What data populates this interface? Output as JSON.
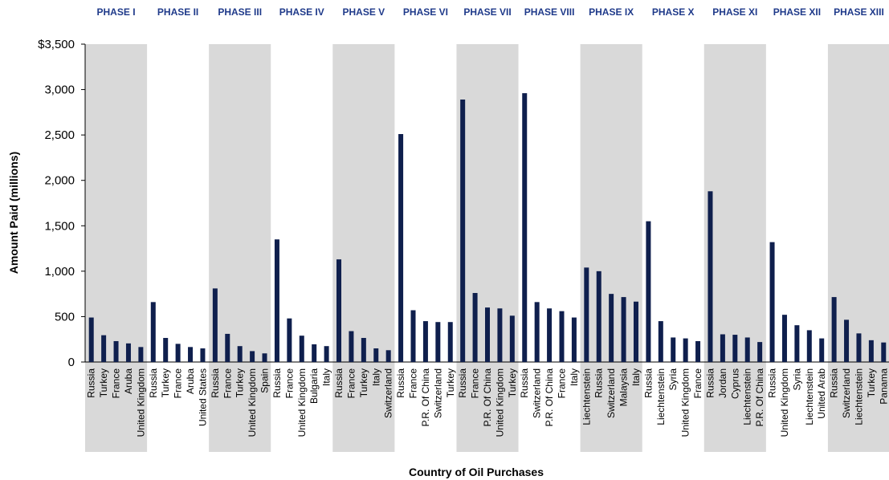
{
  "chart_data": {
    "type": "bar",
    "ylabel": "Amount Paid (millions)",
    "xlabel": "Country of Oil Purchases",
    "ylim": [
      0,
      3500
    ],
    "yticks": [
      "0",
      "500",
      "1,000",
      "1,500",
      "2,000",
      "2,500",
      "3,000",
      "$3,500"
    ],
    "grid": false,
    "colors": {
      "bar": "#0f1f4d",
      "band": "#d9d9d9",
      "phase_label": "#1f3a8a"
    },
    "phases": [
      {
        "name": "PHASE I",
        "shaded": true,
        "bars": [
          {
            "country": "Russia",
            "value": 490
          },
          {
            "country": "Turkey",
            "value": 295
          },
          {
            "country": "France",
            "value": 230
          },
          {
            "country": "Aruba",
            "value": 205
          },
          {
            "country": "United Kingdom",
            "value": 165
          }
        ]
      },
      {
        "name": "PHASE II",
        "shaded": false,
        "bars": [
          {
            "country": "Russia",
            "value": 660
          },
          {
            "country": "Turkey",
            "value": 265
          },
          {
            "country": "France",
            "value": 200
          },
          {
            "country": "Aruba",
            "value": 165
          },
          {
            "country": "United States",
            "value": 150
          }
        ]
      },
      {
        "name": "PHASE III",
        "shaded": true,
        "bars": [
          {
            "country": "Russia",
            "value": 810
          },
          {
            "country": "France",
            "value": 310
          },
          {
            "country": "Turkey",
            "value": 175
          },
          {
            "country": "United Kingdom",
            "value": 120
          },
          {
            "country": "Spain",
            "value": 95
          }
        ]
      },
      {
        "name": "PHASE IV",
        "shaded": false,
        "bars": [
          {
            "country": "Russia",
            "value": 1350
          },
          {
            "country": "France",
            "value": 480
          },
          {
            "country": "United Kingdom",
            "value": 290
          },
          {
            "country": "Bulgaria",
            "value": 195
          },
          {
            "country": "Italy",
            "value": 175
          }
        ]
      },
      {
        "name": "PHASE V",
        "shaded": true,
        "bars": [
          {
            "country": "Russia",
            "value": 1130
          },
          {
            "country": "France",
            "value": 340
          },
          {
            "country": "Turkey",
            "value": 265
          },
          {
            "country": "Italy",
            "value": 150
          },
          {
            "country": "Switzerland",
            "value": 130
          }
        ]
      },
      {
        "name": "PHASE VI",
        "shaded": false,
        "bars": [
          {
            "country": "Russia",
            "value": 2510
          },
          {
            "country": "France",
            "value": 570
          },
          {
            "country": "P.R. Of China",
            "value": 450
          },
          {
            "country": "Switzerland",
            "value": 440
          },
          {
            "country": "Turkey",
            "value": 440
          }
        ]
      },
      {
        "name": "PHASE VII",
        "shaded": true,
        "bars": [
          {
            "country": "Russia",
            "value": 2890
          },
          {
            "country": "France",
            "value": 760
          },
          {
            "country": "P.R. Of China",
            "value": 600
          },
          {
            "country": "United Kingdom",
            "value": 590
          },
          {
            "country": "Turkey",
            "value": 510
          }
        ]
      },
      {
        "name": "PHASE VIII",
        "shaded": false,
        "bars": [
          {
            "country": "Russia",
            "value": 2960
          },
          {
            "country": "Switzerland",
            "value": 660
          },
          {
            "country": "P.R. Of China",
            "value": 590
          },
          {
            "country": "France",
            "value": 560
          },
          {
            "country": "Italy",
            "value": 490
          }
        ]
      },
      {
        "name": "PHASE IX",
        "shaded": true,
        "bars": [
          {
            "country": "Liechtenstein",
            "value": 1040
          },
          {
            "country": "Russia",
            "value": 1000
          },
          {
            "country": "Switzerland",
            "value": 750
          },
          {
            "country": "Malaysia",
            "value": 715
          },
          {
            "country": "Italy",
            "value": 665
          }
        ]
      },
      {
        "name": "PHASE X",
        "shaded": false,
        "bars": [
          {
            "country": "Russia",
            "value": 1550
          },
          {
            "country": "Liechtenstein",
            "value": 450
          },
          {
            "country": "Syria",
            "value": 270
          },
          {
            "country": "United Kingdom",
            "value": 260
          },
          {
            "country": "France",
            "value": 230
          }
        ]
      },
      {
        "name": "PHASE XI",
        "shaded": true,
        "bars": [
          {
            "country": "Russia",
            "value": 1880
          },
          {
            "country": "Jordan",
            "value": 305
          },
          {
            "country": "Cyprus",
            "value": 300
          },
          {
            "country": "Liechtenstein",
            "value": 270
          },
          {
            "country": "P.R. Of China",
            "value": 220
          }
        ]
      },
      {
        "name": "PHASE XII",
        "shaded": false,
        "bars": [
          {
            "country": "Russia",
            "value": 1320
          },
          {
            "country": "United Kingdom",
            "value": 520
          },
          {
            "country": "Syria",
            "value": 405
          },
          {
            "country": "Liechtenstein",
            "value": 350
          },
          {
            "country": "United Arab",
            "value": 260
          }
        ]
      },
      {
        "name": "PHASE XIII",
        "shaded": true,
        "bars": [
          {
            "country": "Russia",
            "value": 715
          },
          {
            "country": "Switzerland",
            "value": 465
          },
          {
            "country": "Liechtenstein",
            "value": 315
          },
          {
            "country": "Turkey",
            "value": 240
          },
          {
            "country": "Panama",
            "value": 215
          }
        ]
      }
    ]
  }
}
